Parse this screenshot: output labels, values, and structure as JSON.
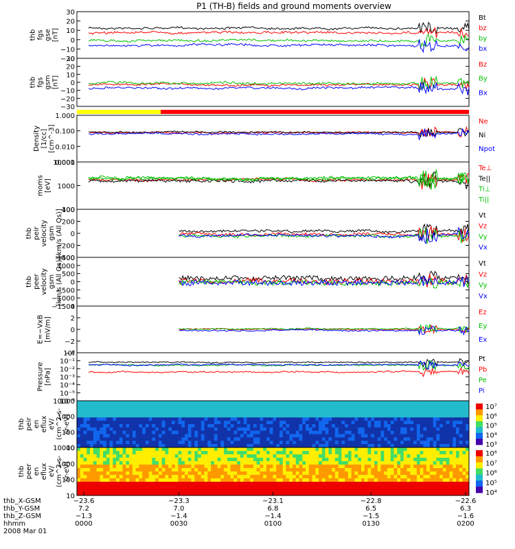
{
  "title": "P1 (TH-B) fields and ground moments overview",
  "chart_data": [
    {
      "type": "line",
      "ylabel": [
        "thb",
        "fgs",
        "gse",
        "[nT]"
      ],
      "yticks": [
        "30",
        "20",
        "10",
        "0",
        "−10",
        "−20"
      ],
      "series": [
        {
          "name": "Bt",
          "color": "#000000"
        },
        {
          "name": "bz",
          "color": "#ff0000"
        },
        {
          "name": "by",
          "color": "#00c000"
        },
        {
          "name": "bx",
          "color": "#0000ff"
        }
      ]
    },
    {
      "type": "line",
      "ylabel": [
        "thb",
        "fgs",
        "gsm",
        "[nT]"
      ],
      "yticks": [
        "30",
        "20",
        "10",
        "0",
        "−10",
        "−20",
        "−30"
      ],
      "series": [
        {
          "name": "Bz",
          "color": "#ff0000"
        },
        {
          "name": "By",
          "color": "#00c000"
        },
        {
          "name": "Bx",
          "color": "#0000ff"
        }
      ]
    },
    {
      "type": "line",
      "ylabel": [
        "Density",
        "[1/cc]",
        "[cm^-3]"
      ],
      "yticks": [
        "1.000",
        "0.100",
        "0.010",
        "0.001"
      ],
      "series": [
        {
          "name": "Ne",
          "color": "#ff0000"
        },
        {
          "name": "Ni",
          "color": "#000000"
        },
        {
          "name": "Npot",
          "color": "#0000ff"
        }
      ]
    },
    {
      "type": "line",
      "ylabel": [
        "moms",
        "[eV]"
      ],
      "yticks": [
        "10000",
        "1000",
        "100"
      ],
      "series": [
        {
          "name": "Te⊥",
          "color": "#ff0000"
        },
        {
          "name": "Te||",
          "color": "#000000"
        },
        {
          "name": "Ti⊥",
          "color": "#00c000"
        },
        {
          "name": "Ti||",
          "color": "#00c000"
        }
      ]
    },
    {
      "type": "line",
      "ylabel": [
        "thb",
        "peir",
        "velocity",
        "gsm",
        "[km/s (All Qs)]"
      ],
      "yticks": [
        "400",
        "200",
        "0",
        "−200",
        "−400"
      ],
      "series": [
        {
          "name": "Vt",
          "color": "#000000"
        },
        {
          "name": "Vz",
          "color": "#ff0000"
        },
        {
          "name": "Vy",
          "color": "#00c000"
        },
        {
          "name": "Vx",
          "color": "#0000ff"
        }
      ]
    },
    {
      "type": "line",
      "ylabel": [
        "thb",
        "peer",
        "velocity",
        "gsm",
        "[km/s (All Qs)]"
      ],
      "yticks": [
        "1500",
        "1000",
        "500",
        "0",
        "−500",
        "−1000",
        "−1500"
      ],
      "series": [
        {
          "name": "Vt",
          "color": "#000000"
        },
        {
          "name": "Vz",
          "color": "#ff0000"
        },
        {
          "name": "Vy",
          "color": "#00c000"
        },
        {
          "name": "Vx",
          "color": "#0000ff"
        }
      ]
    },
    {
      "type": "line",
      "ylabel": [
        "E=−VxB",
        "[mV/m]"
      ],
      "yticks": [
        "4",
        "2",
        "0",
        "−2",
        "−4"
      ],
      "series": [
        {
          "name": "Ez",
          "color": "#ff0000"
        },
        {
          "name": "Ey",
          "color": "#00c000"
        },
        {
          "name": "Ex",
          "color": "#0000ff"
        }
      ]
    },
    {
      "type": "line",
      "ylabel": [
        "Pressure",
        "[nPa]"
      ],
      "yticks": [
        "10⁰",
        "10⁻¹",
        "10⁻²",
        "10⁻³",
        "10⁻⁴",
        "10⁻⁵",
        "10⁻⁶"
      ],
      "series": [
        {
          "name": "Pt",
          "color": "#000000"
        },
        {
          "name": "Pb",
          "color": "#ff0000"
        },
        {
          "name": "Pe",
          "color": "#00c000"
        },
        {
          "name": "Pi",
          "color": "#0000ff"
        }
      ]
    },
    {
      "type": "heatmap",
      "ylabel": [
        "thb",
        "peir",
        "en",
        "eflux",
        "eV/",
        "(cm^2-s-",
        "sr-eV)"
      ],
      "yticks": [
        "10000",
        "1000",
        "100",
        "10"
      ],
      "colorbar": [
        "10⁷",
        "10⁶",
        "10⁵",
        "10⁴",
        "10³"
      ]
    },
    {
      "type": "heatmap",
      "ylabel": [
        "thb",
        "peer",
        "en",
        "eflux",
        "eV/",
        "(cm^2-s-",
        "sr-eV)"
      ],
      "yticks": [
        "10000",
        "1000",
        "100",
        "10"
      ],
      "colorbar": [
        "10⁸",
        "10⁷",
        "10⁶",
        "10⁵",
        "10⁴"
      ]
    }
  ],
  "xaxis": {
    "row_labels": [
      "thb_X-GSM",
      "thb_Y-GSM",
      "thb_Z-GSM",
      "hhmm",
      "2008 Mar 01"
    ],
    "columns": [
      [
        "−23.6",
        "7.2",
        "−1.3",
        "0000"
      ],
      [
        "−23.3",
        "7.0",
        "−1.4",
        "0030"
      ],
      [
        "−23.1",
        "6.8",
        "−1.4",
        "0100"
      ],
      [
        "−22.8",
        "6.5",
        "−1.5",
        "0130"
      ],
      [
        "−22.6",
        "6.3",
        "−1.6",
        "0200"
      ]
    ]
  }
}
